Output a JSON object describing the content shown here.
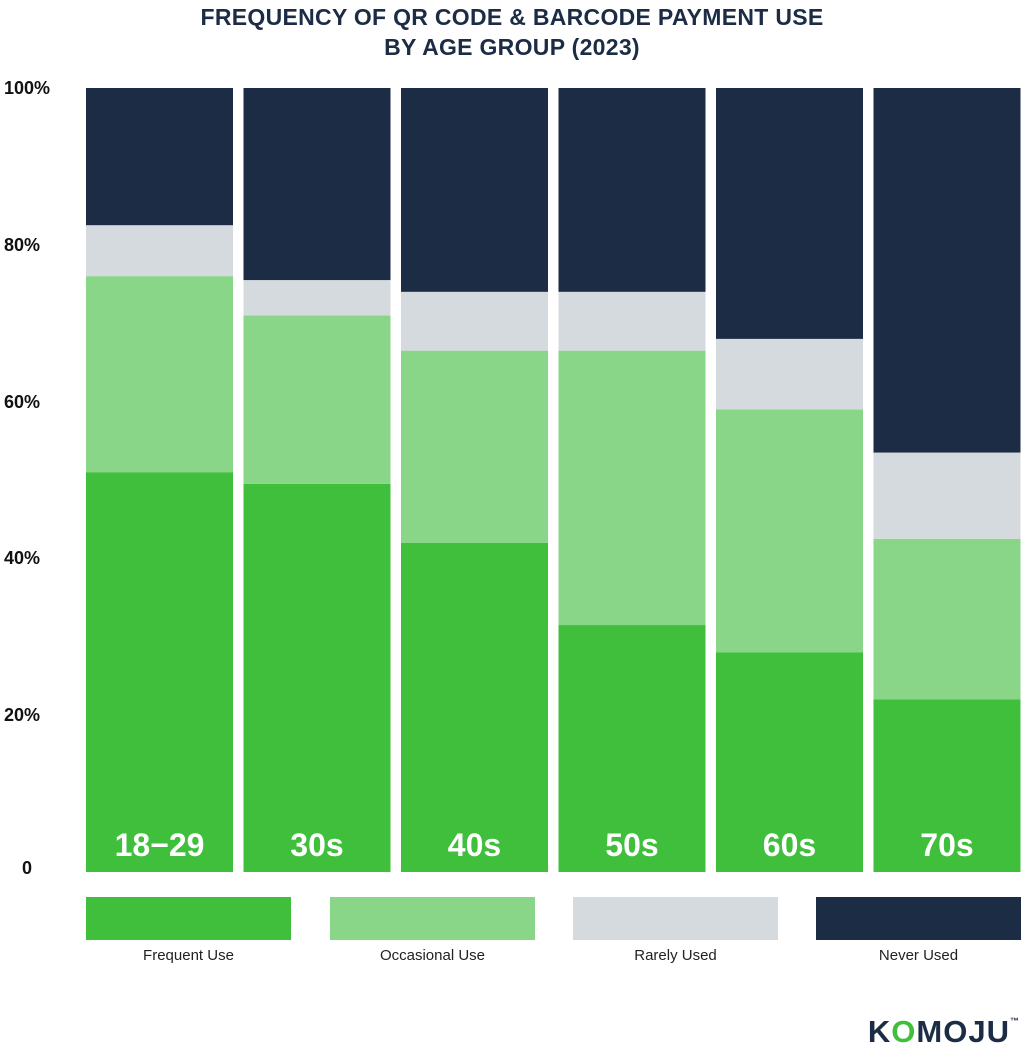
{
  "title_line1": "FREQUENCY OF QR CODE & BARCODE PAYMENT USE",
  "title_line2": "BY AGE GROUP (2023)",
  "logo": {
    "part1": "K",
    "part2": "O",
    "part3": "MOJU",
    "mark": "™"
  },
  "colors": {
    "frequent": "#3fbf3c",
    "occasional": "#8ad688",
    "rarely": "#d5dade",
    "never": "#1b2c44",
    "text_dark": "#1b2c44"
  },
  "chart_data": {
    "type": "bar",
    "stacked": true,
    "title": "FREQUENCY OF QR CODE & BARCODE PAYMENT USE BY AGE GROUP (2023)",
    "categories": [
      "18−29",
      "30s",
      "40s",
      "50s",
      "60s",
      "70s"
    ],
    "series": [
      {
        "name": "Frequent Use",
        "values": [
          51,
          49.5,
          42,
          31.5,
          28,
          22
        ]
      },
      {
        "name": "Occasional Use",
        "values": [
          25,
          21.5,
          24.5,
          35,
          31,
          20.5
        ]
      },
      {
        "name": "Rarely Used",
        "values": [
          6.5,
          4.5,
          7.5,
          7.5,
          9,
          11
        ]
      },
      {
        "name": "Never Used",
        "values": [
          17.5,
          24.5,
          26,
          26,
          32,
          46.5
        ]
      }
    ],
    "yticks": [
      "0",
      "20%",
      "40%",
      "60%",
      "80%",
      "100%"
    ],
    "ytick_values": [
      0,
      20,
      40,
      60,
      80,
      100
    ],
    "ylim": [
      0,
      100
    ],
    "grid": false,
    "legend_position": "bottom"
  }
}
